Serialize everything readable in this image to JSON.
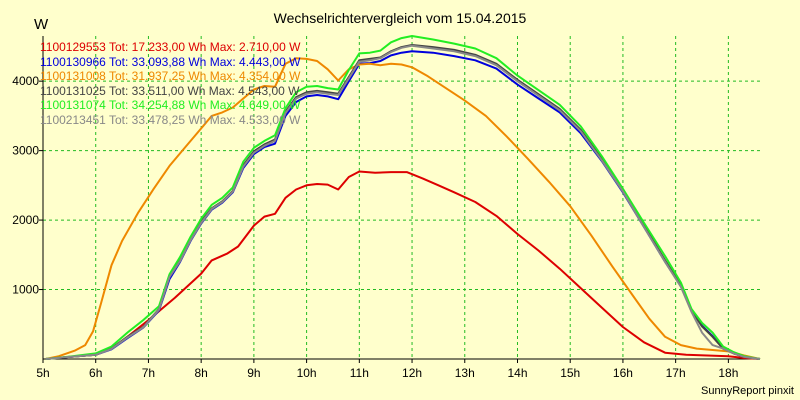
{
  "chart_data": {
    "type": "line",
    "title": "Wechselrichtervergleich vom 15.04.2015",
    "ylabel": "W",
    "footer": "SunnyReport pinxit",
    "xlim": [
      5.0,
      18.6
    ],
    "ylim": [
      0,
      4650
    ],
    "x_ticks": [
      5,
      6,
      7,
      8,
      9,
      10,
      11,
      12,
      13,
      14,
      15,
      16,
      17,
      18
    ],
    "x_tick_labels": [
      "5h",
      "6h",
      "7h",
      "8h",
      "9h",
      "10h",
      "11h",
      "12h",
      "13h",
      "14h",
      "15h",
      "16h",
      "17h",
      "18h"
    ],
    "y_ticks": [
      1000,
      2000,
      3000,
      4000
    ],
    "y_tick_labels": [
      "1000",
      "2000",
      "3000",
      "4000"
    ],
    "grid": true,
    "series": [
      {
        "name": "1100129553",
        "legend": "1100129553 Tot: 17.233,00 Wh Max: 2.710,00 W",
        "color": "#dd0000",
        "x": [
          5.05,
          5.5,
          6.0,
          6.3,
          6.6,
          7.0,
          7.5,
          8.0,
          8.2,
          8.5,
          8.7,
          9.0,
          9.2,
          9.4,
          9.6,
          9.8,
          10.0,
          10.2,
          10.4,
          10.6,
          10.8,
          11.0,
          11.3,
          11.6,
          11.9,
          12.2,
          12.5,
          12.8,
          13.2,
          13.6,
          14.0,
          14.4,
          14.8,
          15.2,
          15.6,
          16.0,
          16.4,
          16.8,
          17.2,
          17.6,
          18.0,
          18.3,
          18.6
        ],
        "values": [
          0,
          30,
          60,
          150,
          320,
          560,
          880,
          1230,
          1420,
          1520,
          1620,
          1920,
          2050,
          2090,
          2320,
          2440,
          2500,
          2520,
          2510,
          2440,
          2620,
          2700,
          2680,
          2690,
          2690,
          2600,
          2500,
          2400,
          2260,
          2060,
          1800,
          1560,
          1300,
          1020,
          740,
          460,
          240,
          90,
          60,
          50,
          40,
          15,
          0
        ]
      },
      {
        "name": "1100130966",
        "legend": "1100130966 Tot: 33.093,88 Wh Max: 4.443,00 W",
        "color": "#0000dd",
        "x": [
          5.05,
          5.5,
          6.0,
          6.3,
          6.6,
          6.9,
          7.2,
          7.4,
          7.6,
          7.8,
          8.0,
          8.2,
          8.4,
          8.6,
          8.8,
          9.0,
          9.2,
          9.4,
          9.6,
          9.8,
          10.0,
          10.2,
          10.4,
          10.6,
          10.8,
          11.0,
          11.2,
          11.4,
          11.6,
          11.8,
          12.0,
          12.4,
          12.8,
          13.2,
          13.6,
          14.0,
          14.4,
          14.8,
          15.2,
          15.6,
          16.0,
          16.4,
          16.8,
          17.1,
          17.3,
          17.5,
          17.7,
          17.9,
          18.1,
          18.3,
          18.6
        ],
        "values": [
          0,
          30,
          60,
          140,
          300,
          450,
          700,
          1150,
          1400,
          1700,
          1950,
          2150,
          2250,
          2400,
          2750,
          2950,
          3050,
          3100,
          3500,
          3700,
          3780,
          3800,
          3780,
          3740,
          4000,
          4250,
          4260,
          4290,
          4370,
          4410,
          4430,
          4410,
          4360,
          4300,
          4180,
          3950,
          3750,
          3550,
          3250,
          2850,
          2400,
          1900,
          1400,
          1050,
          700,
          480,
          330,
          150,
          80,
          30,
          0
        ]
      },
      {
        "name": "1100131008",
        "legend": "1100131008 Tot: 31.937,25 Wh Max: 4.354,00 W",
        "color": "#ee8800",
        "x": [
          5.05,
          5.3,
          5.6,
          5.8,
          5.95,
          6.1,
          6.3,
          6.5,
          6.8,
          7.1,
          7.4,
          7.7,
          8.0,
          8.2,
          8.4,
          8.6,
          8.8,
          9.0,
          9.2,
          9.4,
          9.6,
          9.8,
          10.0,
          10.2,
          10.4,
          10.6,
          10.8,
          11.0,
          11.2,
          11.4,
          11.6,
          11.8,
          12.0,
          12.3,
          12.6,
          13.0,
          13.4,
          13.8,
          14.2,
          14.6,
          15.0,
          15.4,
          15.8,
          16.2,
          16.5,
          16.8,
          17.1,
          17.4,
          17.7,
          18.0,
          18.3,
          18.6
        ],
        "values": [
          0,
          40,
          120,
          200,
          400,
          800,
          1350,
          1700,
          2100,
          2450,
          2780,
          3050,
          3320,
          3500,
          3550,
          3620,
          3750,
          3880,
          3930,
          3920,
          4250,
          4330,
          4320,
          4290,
          4170,
          4010,
          4170,
          4240,
          4250,
          4230,
          4250,
          4240,
          4200,
          4070,
          3920,
          3720,
          3500,
          3200,
          2880,
          2550,
          2200,
          1780,
          1330,
          900,
          580,
          320,
          200,
          150,
          130,
          110,
          50,
          0
        ]
      },
      {
        "name": "1100131025",
        "legend": "1100131025 Tot: 33.511,00 Wh Max: 4.543,00 W",
        "color": "#444444",
        "x": [
          5.05,
          5.5,
          6.0,
          6.3,
          6.6,
          6.9,
          7.2,
          7.4,
          7.6,
          7.8,
          8.0,
          8.2,
          8.4,
          8.6,
          8.8,
          9.0,
          9.2,
          9.4,
          9.6,
          9.8,
          10.0,
          10.2,
          10.4,
          10.6,
          10.8,
          11.0,
          11.2,
          11.4,
          11.6,
          11.8,
          12.0,
          12.4,
          12.8,
          13.2,
          13.6,
          14.0,
          14.4,
          14.8,
          15.2,
          15.6,
          16.0,
          16.4,
          16.8,
          17.1,
          17.3,
          17.5,
          17.7,
          17.9,
          18.1,
          18.3,
          18.6
        ],
        "values": [
          0,
          30,
          60,
          150,
          320,
          460,
          720,
          1200,
          1420,
          1720,
          1980,
          2170,
          2270,
          2420,
          2790,
          2990,
          3090,
          3160,
          3560,
          3770,
          3840,
          3860,
          3840,
          3820,
          4060,
          4300,
          4320,
          4340,
          4430,
          4490,
          4520,
          4490,
          4450,
          4380,
          4250,
          4020,
          3810,
          3600,
          3300,
          2880,
          2420,
          1920,
          1420,
          1060,
          700,
          470,
          320,
          150,
          80,
          30,
          0
        ]
      },
      {
        "name": "1100131074",
        "legend": "1100131074 Tot: 34.254,88 Wh Max: 4.649,00 W",
        "color": "#22ee22",
        "x": [
          5.05,
          5.5,
          6.0,
          6.3,
          6.6,
          6.9,
          7.2,
          7.4,
          7.6,
          7.8,
          8.0,
          8.2,
          8.4,
          8.6,
          8.8,
          9.0,
          9.2,
          9.4,
          9.6,
          9.8,
          10.0,
          10.2,
          10.4,
          10.6,
          10.8,
          11.0,
          11.2,
          11.4,
          11.6,
          11.8,
          12.0,
          12.4,
          12.8,
          13.2,
          13.6,
          14.0,
          14.4,
          14.8,
          15.2,
          15.6,
          16.0,
          16.4,
          16.8,
          17.1,
          17.3,
          17.5,
          17.7,
          17.9,
          18.1,
          18.3,
          18.6
        ],
        "values": [
          0,
          35,
          80,
          180,
          380,
          560,
          760,
          1220,
          1470,
          1760,
          2020,
          2220,
          2320,
          2470,
          2840,
          3040,
          3140,
          3220,
          3610,
          3840,
          3920,
          3930,
          3900,
          3880,
          4160,
          4400,
          4410,
          4440,
          4560,
          4620,
          4650,
          4600,
          4540,
          4470,
          4330,
          4080,
          3870,
          3660,
          3350,
          2920,
          2450,
          1960,
          1480,
          1100,
          720,
          520,
          380,
          180,
          100,
          40,
          0
        ]
      },
      {
        "name": "1100213451",
        "legend": "1100213451 Tot: 33.478,25 Wh Max: 4.533,00 W",
        "color": "#888888",
        "x": [
          5.05,
          5.5,
          6.0,
          6.3,
          6.6,
          6.9,
          7.2,
          7.4,
          7.6,
          7.8,
          8.0,
          8.2,
          8.4,
          8.6,
          8.8,
          9.0,
          9.2,
          9.4,
          9.6,
          9.8,
          10.0,
          10.2,
          10.4,
          10.6,
          10.8,
          11.0,
          11.2,
          11.4,
          11.6,
          11.8,
          12.0,
          12.4,
          12.8,
          13.2,
          13.6,
          14.0,
          14.4,
          14.8,
          15.2,
          15.6,
          16.0,
          16.4,
          16.8,
          17.1,
          17.3,
          17.5,
          17.7,
          17.9,
          18.1,
          18.3,
          18.6
        ],
        "values": [
          0,
          30,
          60,
          145,
          310,
          455,
          710,
          1180,
          1410,
          1710,
          1960,
          2160,
          2260,
          2410,
          2770,
          2970,
          3070,
          3140,
          3540,
          3750,
          3820,
          3840,
          3820,
          3800,
          4040,
          4280,
          4300,
          4330,
          4420,
          4480,
          4510,
          4470,
          4430,
          4360,
          4230,
          4000,
          3790,
          3580,
          3280,
          2860,
          2410,
          1900,
          1400,
          1040,
          680,
          380,
          200,
          150,
          80,
          30,
          0
        ]
      }
    ]
  }
}
